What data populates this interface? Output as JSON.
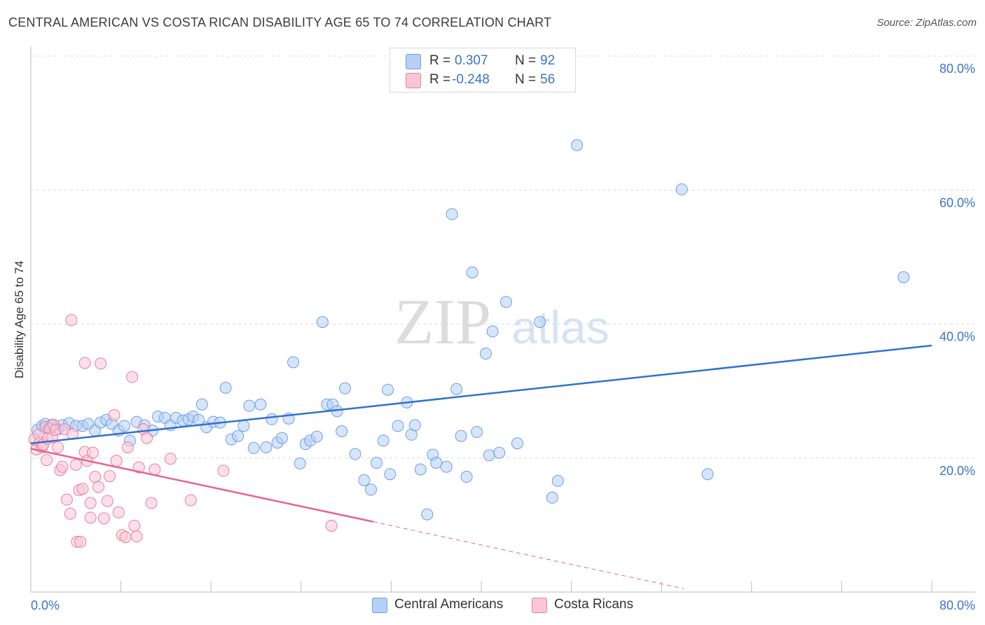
{
  "title": "CENTRAL AMERICAN VS COSTA RICAN DISABILITY AGE 65 TO 74 CORRELATION CHART",
  "source": "Source: ZipAtlas.com",
  "watermark": {
    "zip": "ZIP",
    "atlas": "atlas"
  },
  "legend": {
    "rows": [
      {
        "r_label": "R =",
        "r_value": "0.307",
        "n_label": "N =",
        "n_value": "92",
        "color": "#6d9ee6",
        "fill": "#b7d0f5"
      },
      {
        "r_label": "R =",
        "r_value": "-0.248",
        "n_label": "N =",
        "n_value": "56",
        "color": "#ea7da0",
        "fill": "#f9c6d6"
      }
    ]
  },
  "bottom_legend": [
    {
      "label": "Central Americans",
      "color": "#6d9ee6",
      "fill": "#b7d0f5"
    },
    {
      "label": "Costa Ricans",
      "color": "#ea7da0",
      "fill": "#f9c6d6"
    }
  ],
  "colors": {
    "blue_line": "#2f72d0",
    "pink_line": "#e8638f",
    "tick_text": "#3b73c9",
    "grid": "#dcdcdc"
  },
  "chart_data": {
    "type": "scatter",
    "title": "CENTRAL AMERICAN VS COSTA RICAN DISABILITY AGE 65 TO 74 CORRELATION CHART",
    "xlabel": "",
    "ylabel": "Disability Age 65 to 74",
    "xlim": [
      0,
      80
    ],
    "ylim": [
      0,
      80
    ],
    "x_tick_labels": [
      "0.0%",
      "80.0%"
    ],
    "y_ticks": [
      20,
      40,
      60,
      80
    ],
    "y_tick_labels": [
      "20.0%",
      "40.0%",
      "60.0%",
      "80.0%"
    ],
    "grid": true,
    "legend_position": "top-center",
    "series": [
      {
        "name": "Central Americans",
        "r": 0.307,
        "n": 92,
        "trend": {
          "x": [
            0,
            80
          ],
          "y": [
            22.2,
            36.8
          ],
          "dashed_from": null
        },
        "points": [
          [
            0.6,
            24.2
          ],
          [
            1.0,
            24.8
          ],
          [
            1.3,
            25.1
          ],
          [
            1.6,
            24.4
          ],
          [
            2.0,
            24.9
          ],
          [
            2.4,
            24.3
          ],
          [
            2.8,
            24.9
          ],
          [
            3.4,
            25.2
          ],
          [
            4.0,
            24.8
          ],
          [
            4.6,
            24.8
          ],
          [
            5.1,
            25.1
          ],
          [
            5.7,
            24.1
          ],
          [
            6.2,
            25.3
          ],
          [
            6.7,
            25.7
          ],
          [
            7.2,
            25.1
          ],
          [
            7.8,
            24.1
          ],
          [
            8.3,
            24.8
          ],
          [
            8.8,
            22.6
          ],
          [
            9.4,
            25.4
          ],
          [
            10.1,
            24.9
          ],
          [
            10.8,
            24.1
          ],
          [
            11.3,
            26.2
          ],
          [
            11.9,
            26.0
          ],
          [
            12.4,
            24.9
          ],
          [
            12.9,
            26.0
          ],
          [
            13.5,
            25.6
          ],
          [
            14.0,
            25.8
          ],
          [
            14.4,
            26.2
          ],
          [
            14.9,
            25.7
          ],
          [
            15.2,
            28.0
          ],
          [
            15.6,
            24.6
          ],
          [
            16.2,
            25.4
          ],
          [
            16.8,
            25.3
          ],
          [
            17.3,
            30.5
          ],
          [
            17.8,
            22.8
          ],
          [
            18.4,
            23.3
          ],
          [
            18.9,
            24.8
          ],
          [
            19.4,
            27.8
          ],
          [
            19.8,
            21.5
          ],
          [
            20.4,
            28.0
          ],
          [
            20.9,
            21.6
          ],
          [
            21.4,
            25.8
          ],
          [
            21.9,
            22.3
          ],
          [
            22.3,
            23.0
          ],
          [
            22.9,
            25.9
          ],
          [
            23.3,
            34.3
          ],
          [
            23.9,
            19.2
          ],
          [
            24.4,
            22.1
          ],
          [
            24.8,
            22.6
          ],
          [
            25.4,
            23.2
          ],
          [
            25.9,
            40.3
          ],
          [
            26.3,
            28.0
          ],
          [
            26.8,
            28.0
          ],
          [
            27.2,
            27.0
          ],
          [
            27.6,
            24.0
          ],
          [
            27.9,
            30.4
          ],
          [
            28.8,
            20.6
          ],
          [
            29.6,
            16.7
          ],
          [
            30.2,
            15.3
          ],
          [
            30.7,
            19.3
          ],
          [
            31.3,
            22.6
          ],
          [
            31.7,
            30.2
          ],
          [
            31.9,
            17.6
          ],
          [
            32.6,
            24.8
          ],
          [
            33.4,
            28.3
          ],
          [
            33.8,
            23.5
          ],
          [
            34.1,
            24.9
          ],
          [
            34.6,
            18.3
          ],
          [
            35.2,
            11.6
          ],
          [
            35.7,
            20.5
          ],
          [
            36.0,
            19.3
          ],
          [
            36.9,
            18.7
          ],
          [
            37.4,
            56.4
          ],
          [
            37.8,
            30.3
          ],
          [
            38.2,
            23.3
          ],
          [
            38.7,
            17.2
          ],
          [
            39.2,
            47.7
          ],
          [
            39.6,
            23.9
          ],
          [
            40.4,
            35.6
          ],
          [
            40.7,
            20.4
          ],
          [
            41.0,
            38.9
          ],
          [
            41.6,
            20.8
          ],
          [
            42.2,
            43.3
          ],
          [
            43.2,
            22.2
          ],
          [
            45.2,
            40.3
          ],
          [
            46.3,
            14.1
          ],
          [
            46.8,
            16.6
          ],
          [
            48.5,
            66.7
          ],
          [
            57.8,
            60.1
          ],
          [
            60.1,
            17.6
          ],
          [
            77.5,
            47.0
          ],
          [
            1.8,
            24.9
          ]
        ]
      },
      {
        "name": "Costa Ricans",
        "r": -0.248,
        "n": 56,
        "trend": {
          "x": [
            0,
            30.4
          ],
          "y": [
            21.4,
            10.5
          ],
          "dashed_from": 30.4,
          "dashed_to": [
            58.0,
            0.5
          ]
        },
        "points": [
          [
            0.3,
            22.8
          ],
          [
            0.5,
            21.3
          ],
          [
            0.7,
            23.5
          ],
          [
            0.8,
            22.3
          ],
          [
            1.0,
            21.6
          ],
          [
            1.1,
            22.0
          ],
          [
            1.3,
            24.6
          ],
          [
            1.5,
            22.9
          ],
          [
            1.7,
            24.4
          ],
          [
            1.9,
            23.1
          ],
          [
            2.0,
            25.0
          ],
          [
            2.2,
            24.2
          ],
          [
            2.4,
            21.6
          ],
          [
            2.6,
            18.2
          ],
          [
            2.8,
            18.7
          ],
          [
            3.0,
            24.3
          ],
          [
            3.2,
            13.8
          ],
          [
            3.5,
            11.7
          ],
          [
            3.7,
            23.6
          ],
          [
            4.0,
            19.0
          ],
          [
            4.1,
            7.5
          ],
          [
            4.3,
            15.2
          ],
          [
            4.4,
            7.5
          ],
          [
            4.6,
            15.4
          ],
          [
            4.8,
            20.9
          ],
          [
            5.0,
            19.6
          ],
          [
            5.3,
            11.1
          ],
          [
            5.3,
            13.3
          ],
          [
            5.5,
            20.8
          ],
          [
            5.7,
            17.2
          ],
          [
            6.0,
            15.7
          ],
          [
            6.2,
            34.1
          ],
          [
            6.5,
            11.0
          ],
          [
            6.8,
            13.6
          ],
          [
            7.0,
            17.3
          ],
          [
            7.4,
            26.4
          ],
          [
            7.6,
            19.6
          ],
          [
            7.8,
            11.9
          ],
          [
            8.1,
            8.5
          ],
          [
            8.4,
            8.2
          ],
          [
            8.6,
            21.6
          ],
          [
            9.0,
            32.1
          ],
          [
            9.2,
            9.9
          ],
          [
            9.4,
            8.3
          ],
          [
            10.0,
            24.3
          ],
          [
            10.3,
            23.0
          ],
          [
            10.7,
            13.3
          ],
          [
            11.0,
            18.3
          ],
          [
            12.4,
            19.9
          ],
          [
            14.2,
            13.7
          ],
          [
            17.1,
            18.1
          ],
          [
            26.7,
            9.9
          ],
          [
            9.6,
            18.6
          ],
          [
            3.6,
            40.6
          ],
          [
            4.8,
            34.2
          ],
          [
            1.4,
            19.7
          ]
        ]
      }
    ]
  }
}
